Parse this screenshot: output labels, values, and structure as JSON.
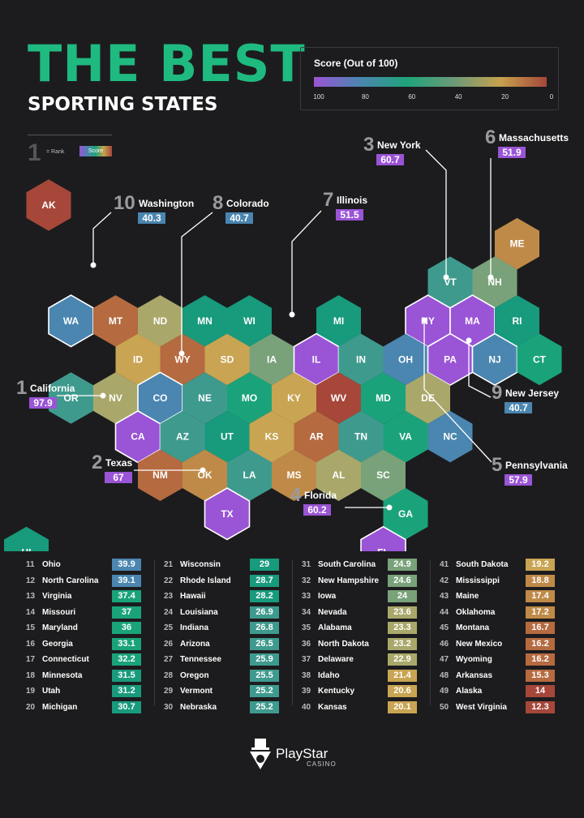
{
  "header": {
    "title": "THE BEST",
    "subtitle": "SPORTING STATES"
  },
  "legend": {
    "title": "Score (Out of 100)",
    "ticks": [
      "100",
      "80",
      "60",
      "40",
      "20",
      "0"
    ],
    "colors": [
      "#9a54d6",
      "#4a86b0",
      "#1fa37a",
      "#6b9a78",
      "#c7a14e",
      "#a6473a"
    ]
  },
  "key": {
    "rank_example": "1",
    "rank_label": "= Rank",
    "score_label": "Score"
  },
  "chart_data": {
    "type": "table",
    "scale": {
      "min": 0,
      "max": 100
    },
    "states": [
      {
        "code": "AK",
        "q": 0,
        "r": 0,
        "score": 14
      },
      {
        "code": "ME",
        "q": 11,
        "r": 1,
        "score": 17.4
      },
      {
        "code": "VT",
        "q": 9,
        "r": 2,
        "score": 25.2
      },
      {
        "code": "NH",
        "q": 10,
        "r": 2,
        "score": 24.6
      },
      {
        "code": "WA",
        "q": 1,
        "r": 3,
        "score": 40.3,
        "rank": 10,
        "name": "Washington"
      },
      {
        "code": "MT",
        "q": 2,
        "r": 3,
        "score": 16.7
      },
      {
        "code": "ND",
        "q": 3,
        "r": 3,
        "score": 23.2
      },
      {
        "code": "MN",
        "q": 4,
        "r": 3,
        "score": 31.5
      },
      {
        "code": "WI",
        "q": 5,
        "r": 3,
        "score": 29
      },
      {
        "code": "MI",
        "q": 7,
        "r": 3,
        "score": 30.7
      },
      {
        "code": "NY",
        "q": 9,
        "r": 3,
        "score": 60.7,
        "rank": 3,
        "name": "New York"
      },
      {
        "code": "MA",
        "q": 10,
        "r": 3,
        "score": 51.9,
        "rank": 6,
        "name": "Massachusetts"
      },
      {
        "code": "RI",
        "q": 11,
        "r": 3,
        "score": 28.7
      },
      {
        "code": "ID",
        "q": 2,
        "r": 4,
        "score": 21.4
      },
      {
        "code": "WY",
        "q": 3,
        "r": 4,
        "score": 16.2
      },
      {
        "code": "SD",
        "q": 4,
        "r": 4,
        "score": 19.2
      },
      {
        "code": "IA",
        "q": 5,
        "r": 4,
        "score": 24
      },
      {
        "code": "IL",
        "q": 6,
        "r": 4,
        "score": 51.5,
        "rank": 7,
        "name": "Illinois"
      },
      {
        "code": "IN",
        "q": 7,
        "r": 4,
        "score": 26.8
      },
      {
        "code": "OH",
        "q": 8,
        "r": 4,
        "score": 39.9
      },
      {
        "code": "PA",
        "q": 9,
        "r": 4,
        "score": 57.9,
        "rank": 5,
        "name": "Pennsylvania"
      },
      {
        "code": "NJ",
        "q": 10,
        "r": 4,
        "score": 40.7,
        "rank": 9,
        "name": "New Jersey"
      },
      {
        "code": "CT",
        "q": 11,
        "r": 4,
        "score": 32.2
      },
      {
        "code": "OR",
        "q": 1,
        "r": 5,
        "score": 25.5
      },
      {
        "code": "NV",
        "q": 2,
        "r": 5,
        "score": 23.6
      },
      {
        "code": "CO",
        "q": 3,
        "r": 5,
        "score": 40.7,
        "rank": 8,
        "name": "Colorado"
      },
      {
        "code": "NE",
        "q": 4,
        "r": 5,
        "score": 25.2
      },
      {
        "code": "MO",
        "q": 5,
        "r": 5,
        "score": 37
      },
      {
        "code": "KY",
        "q": 6,
        "r": 5,
        "score": 20.6
      },
      {
        "code": "WV",
        "q": 7,
        "r": 5,
        "score": 12.3
      },
      {
        "code": "MD",
        "q": 8,
        "r": 5,
        "score": 36
      },
      {
        "code": "DE",
        "q": 9,
        "r": 5,
        "score": 22.9
      },
      {
        "code": "CA",
        "q": 2,
        "r": 6,
        "score": 97.9,
        "rank": 1,
        "name": "California"
      },
      {
        "code": "AZ",
        "q": 3,
        "r": 6,
        "score": 26.5
      },
      {
        "code": "UT",
        "q": 4,
        "r": 6,
        "score": 31.2
      },
      {
        "code": "KS",
        "q": 5,
        "r": 6,
        "score": 20.1
      },
      {
        "code": "AR",
        "q": 6,
        "r": 6,
        "score": 15.3
      },
      {
        "code": "TN",
        "q": 7,
        "r": 6,
        "score": 25.9
      },
      {
        "code": "VA",
        "q": 8,
        "r": 6,
        "score": 37.4
      },
      {
        "code": "NC",
        "q": 9,
        "r": 6,
        "score": 39.1
      },
      {
        "code": "NM",
        "q": 3,
        "r": 7,
        "score": 16.2
      },
      {
        "code": "OK",
        "q": 4,
        "r": 7,
        "score": 17.2
      },
      {
        "code": "LA",
        "q": 5,
        "r": 7,
        "score": 26.9
      },
      {
        "code": "MS",
        "q": 6,
        "r": 7,
        "score": 18.8
      },
      {
        "code": "AL",
        "q": 7,
        "r": 7,
        "score": 23.3
      },
      {
        "code": "SC",
        "q": 8,
        "r": 7,
        "score": 24.9
      },
      {
        "code": "TX",
        "q": 4,
        "r": 8,
        "score": 67,
        "rank": 2,
        "name": "Texas"
      },
      {
        "code": "GA",
        "q": 8,
        "r": 8,
        "score": 33.1
      },
      {
        "code": "HI",
        "q": 0,
        "r": 9,
        "score": 28.2
      },
      {
        "code": "FL",
        "q": 8,
        "r": 9,
        "score": 60.2,
        "rank": 4,
        "name": "Florida"
      }
    ],
    "ranked_list": [
      [
        {
          "rank": "11",
          "name": "Ohio",
          "score": "39.9"
        },
        {
          "rank": "12",
          "name": "North Carolina",
          "score": "39.1"
        },
        {
          "rank": "13",
          "name": "Virginia",
          "score": "37.4"
        },
        {
          "rank": "14",
          "name": "Missouri",
          "score": "37"
        },
        {
          "rank": "15",
          "name": "Maryland",
          "score": "36"
        },
        {
          "rank": "16",
          "name": "Georgia",
          "score": "33.1"
        },
        {
          "rank": "17",
          "name": "Connecticut",
          "score": "32.2"
        },
        {
          "rank": "18",
          "name": "Minnesota",
          "score": "31.5"
        },
        {
          "rank": "19",
          "name": "Utah",
          "score": "31.2"
        },
        {
          "rank": "20",
          "name": "Michigan",
          "score": "30.7"
        }
      ],
      [
        {
          "rank": "21",
          "name": "Wisconsin",
          "score": "29"
        },
        {
          "rank": "22",
          "name": "Rhode Island",
          "score": "28.7"
        },
        {
          "rank": "23",
          "name": "Hawaii",
          "score": "28.2"
        },
        {
          "rank": "24",
          "name": "Louisiana",
          "score": "26.9"
        },
        {
          "rank": "25",
          "name": "Indiana",
          "score": "26.8"
        },
        {
          "rank": "26",
          "name": "Arizona",
          "score": "26.5"
        },
        {
          "rank": "27",
          "name": "Tennessee",
          "score": "25.9"
        },
        {
          "rank": "28",
          "name": "Oregon",
          "score": "25.5"
        },
        {
          "rank": "29",
          "name": "Vermont",
          "score": "25.2"
        },
        {
          "rank": "30",
          "name": "Nebraska",
          "score": "25.2"
        }
      ],
      [
        {
          "rank": "31",
          "name": "South Carolina",
          "score": "24.9"
        },
        {
          "rank": "32",
          "name": "New Hampshire",
          "score": "24.6"
        },
        {
          "rank": "33",
          "name": "Iowa",
          "score": "24"
        },
        {
          "rank": "34",
          "name": "Nevada",
          "score": "23.6"
        },
        {
          "rank": "35",
          "name": "Alabama",
          "score": "23.3"
        },
        {
          "rank": "36",
          "name": "North Dakota",
          "score": "23.2"
        },
        {
          "rank": "37",
          "name": "Delaware",
          "score": "22.9"
        },
        {
          "rank": "38",
          "name": "Idaho",
          "score": "21.4"
        },
        {
          "rank": "39",
          "name": "Kentucky",
          "score": "20.6"
        },
        {
          "rank": "40",
          "name": "Kansas",
          "score": "20.1"
        }
      ],
      [
        {
          "rank": "41",
          "name": "South Dakota",
          "score": "19.2"
        },
        {
          "rank": "42",
          "name": "Mississippi",
          "score": "18.8"
        },
        {
          "rank": "43",
          "name": "Maine",
          "score": "17.4"
        },
        {
          "rank": "44",
          "name": "Oklahoma",
          "score": "17.2"
        },
        {
          "rank": "45",
          "name": "Montana",
          "score": "16.7"
        },
        {
          "rank": "46",
          "name": "New Mexico",
          "score": "16.2"
        },
        {
          "rank": "47",
          "name": "Wyoming",
          "score": "16.2"
        },
        {
          "rank": "48",
          "name": "Arkansas",
          "score": "15.3"
        },
        {
          "rank": "49",
          "name": "Alaska",
          "score": "14"
        },
        {
          "rank": "50",
          "name": "West Virginia",
          "score": "12.3"
        }
      ]
    ]
  },
  "brand": {
    "name": "PlayStar",
    "sub": "CASINO",
    "logo_icon": "jester-hat-icon"
  }
}
